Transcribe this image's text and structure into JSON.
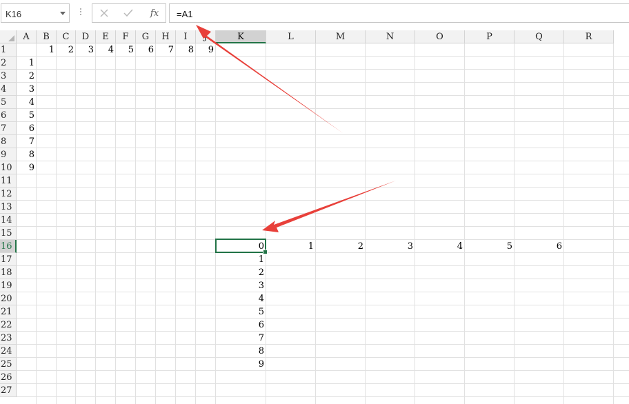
{
  "formula_bar": {
    "name_box": "K16",
    "cancel_icon": "close-icon",
    "enter_icon": "check-icon",
    "function_label": "fx",
    "formula": "=A1"
  },
  "sheet": {
    "columns": [
      "A",
      "B",
      "C",
      "D",
      "E",
      "F",
      "G",
      "H",
      "I",
      "J",
      "K",
      "L",
      "M",
      "N",
      "O",
      "P",
      "Q",
      "R"
    ],
    "selected_column": "K",
    "row_numbers": [
      "1",
      "2",
      "3",
      "4",
      "5",
      "6",
      "7",
      "8",
      "9",
      "10",
      "11",
      "12",
      "13",
      "14",
      "15",
      "16",
      "17",
      "18",
      "19",
      "20",
      "21",
      "22",
      "23",
      "24",
      "25",
      "26",
      "27"
    ],
    "selected_row": "16",
    "active_cell": "K16",
    "cells": {
      "B1": "1",
      "C1": "2",
      "D1": "3",
      "E1": "4",
      "F1": "5",
      "G1": "6",
      "H1": "7",
      "I1": "8",
      "J1": "9",
      "A2": "1",
      "A3": "2",
      "A4": "3",
      "A5": "4",
      "A6": "5",
      "A7": "6",
      "A8": "7",
      "A9": "8",
      "A10": "9",
      "K16": "0",
      "L16": "1",
      "M16": "2",
      "N16": "3",
      "O16": "4",
      "P16": "5",
      "Q16": "6",
      "K17": "1",
      "K18": "2",
      "K19": "3",
      "K20": "4",
      "K21": "5",
      "K22": "6",
      "K23": "7",
      "K24": "8",
      "K25": "9"
    }
  },
  "colors": {
    "accent": "#217346",
    "annotation_arrow": "#e8403a"
  }
}
